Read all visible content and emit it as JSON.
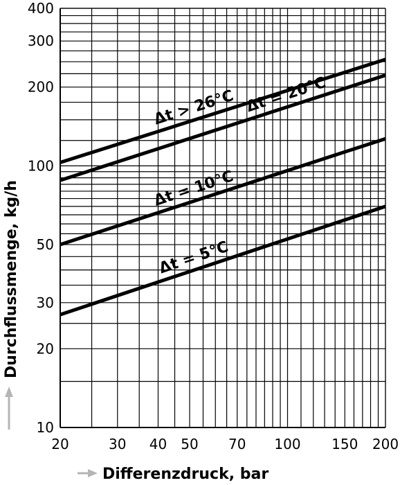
{
  "chart_data": {
    "type": "line",
    "x_scale": "log",
    "y_scale": "log",
    "xlim": [
      20,
      200
    ],
    "ylim": [
      10,
      400
    ],
    "grid": true,
    "legend": "inline",
    "xlabel": "Differenzdruck, bar",
    "ylabel": "Durchflussmenge, kg/h",
    "x_ticks": [
      20,
      30,
      40,
      50,
      70,
      100,
      150,
      200
    ],
    "y_ticks": [
      10,
      20,
      30,
      50,
      100,
      200,
      300,
      400
    ],
    "series": [
      {
        "name": "Δt > 26°C",
        "x": [
          20,
          200
        ],
        "y": [
          103,
          255
        ]
      },
      {
        "name": "Δt = 20°C",
        "x": [
          20,
          200
        ],
        "y": [
          88,
          222
        ]
      },
      {
        "name": "Δt = 10°C",
        "x": [
          20,
          200
        ],
        "y": [
          50,
          127
        ]
      },
      {
        "name": "Δt = 5°C",
        "x": [
          20,
          200
        ],
        "y": [
          27,
          70
        ]
      }
    ]
  }
}
